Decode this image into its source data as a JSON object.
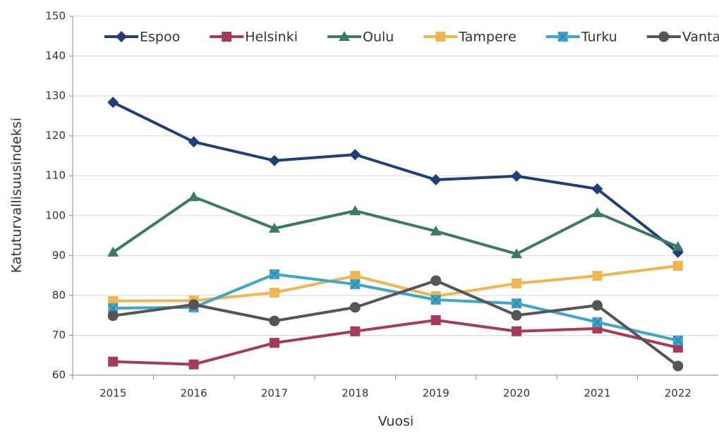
{
  "chart_data": {
    "type": "line",
    "x_label": "Vuosi",
    "y_label": "Katuturvallisuusindeksi",
    "categories": [
      "2015",
      "2016",
      "2017",
      "2018",
      "2019",
      "2020",
      "2021",
      "2022"
    ],
    "series": [
      {
        "name": "Espoo",
        "color": "#1f3f77",
        "marker": "diamond",
        "values": [
          128.4,
          118.5,
          113.8,
          115.3,
          109,
          109.9,
          106.7,
          90.8
        ]
      },
      {
        "name": "Helsinki",
        "color": "#a8385e",
        "marker": "square",
        "values": [
          63.4,
          62.7,
          68.1,
          71,
          73.8,
          71,
          71.7,
          66.9
        ]
      },
      {
        "name": "Oulu",
        "color": "#3b7a67",
        "marker": "triangle",
        "values": [
          90.8,
          104.7,
          96.8,
          101.2,
          96.1,
          90.4,
          100.7,
          92.2
        ]
      },
      {
        "name": "Tampere",
        "color": "#f0b450",
        "marker": "square",
        "values": [
          78.6,
          78.7,
          80.7,
          84.9,
          79.8,
          83,
          84.9,
          87.4
        ]
      },
      {
        "name": "Turku",
        "color": "#3fa5c9",
        "marker": "square-x",
        "values": [
          76.8,
          77,
          85.3,
          82.8,
          78.9,
          78,
          73.3,
          68.7
        ]
      },
      {
        "name": "Vantaa",
        "color": "#555555",
        "marker": "circle",
        "values": [
          74.9,
          77.7,
          73.6,
          77,
          83.7,
          75,
          77.5,
          62.3
        ]
      }
    ],
    "ylim": [
      60,
      150
    ],
    "yticks": [
      60,
      70,
      80,
      90,
      100,
      110,
      120,
      130,
      140,
      150
    ],
    "grid": true,
    "legend": "top"
  }
}
